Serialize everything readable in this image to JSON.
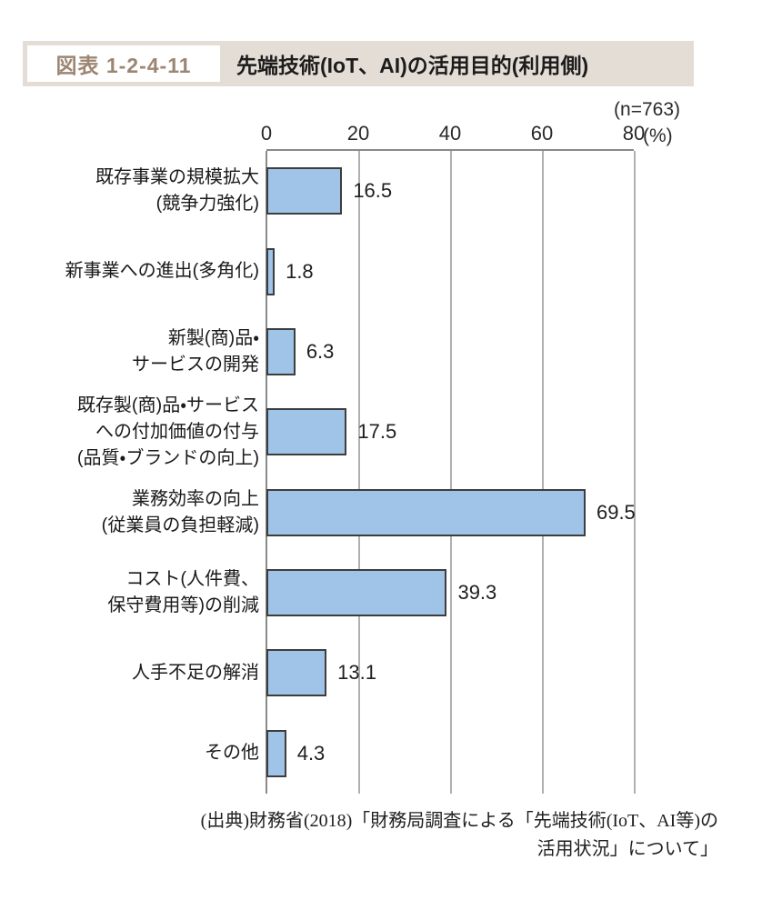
{
  "header": {
    "figure_label": "図表 1-2-4-11",
    "title": "先端技術(IoT、AI)の活用目的(利用側)"
  },
  "colors": {
    "band_bg": "#e4ddd6",
    "figure_label_text": "#9c8673",
    "bar_fill": "#a0c4e8",
    "bar_border": "#3d3d3d",
    "gridline": "#b0b0b0",
    "axis_line": "#8a8a8a",
    "text": "#1e1e1e"
  },
  "chart_data": {
    "type": "bar",
    "orientation": "horizontal",
    "title": "先端技術(IoT、AI)の活用目的(利用側)",
    "n_label": "(n=763)",
    "unit_label": "(%)",
    "xlim": [
      0,
      80
    ],
    "x_ticks": [
      0,
      20,
      40,
      60,
      80
    ],
    "grid": true,
    "categories": [
      [
        "既存事業の規模拡大",
        "(競争力強化)"
      ],
      [
        "新事業への進出(多角化)"
      ],
      [
        "新製(商)品・",
        "サービスの開発"
      ],
      [
        "既存製(商)品・サービス",
        "への付加価値の付与",
        "(品質・ブランドの向上)"
      ],
      [
        "業務効率の向上",
        "(従業員の負担軽減)"
      ],
      [
        "コスト(人件費、",
        "保守費用等)の削減"
      ],
      [
        "人手不足の解消"
      ],
      [
        "その他"
      ]
    ],
    "values": [
      16.5,
      1.8,
      6.3,
      17.5,
      69.5,
      39.3,
      13.1,
      4.3
    ]
  },
  "source": {
    "lines": [
      "(出典)財務省(2018)「財務局調査による「先端技術(IoT、AI等)の",
      "活用状況」について」"
    ]
  }
}
